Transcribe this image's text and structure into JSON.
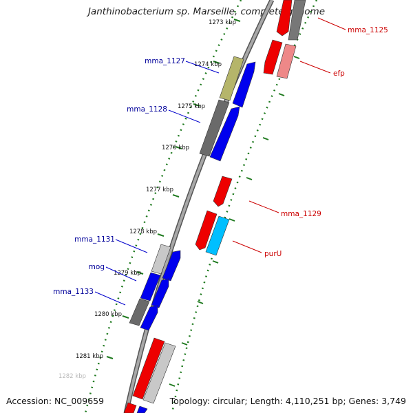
{
  "title": "Janthinobacterium sp. Marseille, complete genome",
  "accession": "Accession: NC_009659",
  "summary": "Topology: circular; Length: 4,110,251 bp; Genes: 3,749",
  "colors": {
    "backbone": "#888888",
    "tick_ring": "#1f7a1f",
    "forward_gene": "#0000ee",
    "reverse_gene": "#ee0000",
    "pseudo_gene": "#777777",
    "light_gene": "#c8c8c8",
    "olive_gene": "#b5b56a",
    "pink_gene": "#ee8888",
    "cyan_gene": "#00bfff",
    "left_label": "#00009a",
    "right_label": "#cc0000"
  },
  "scale": {
    "ticks": [
      {
        "label": "1273 kbp"
      },
      {
        "label": "1274 kbp"
      },
      {
        "label": "1275 kbp"
      },
      {
        "label": "1276 kbp"
      },
      {
        "label": "1277 kbp"
      },
      {
        "label": "1278 kbp"
      },
      {
        "label": "1279 kbp"
      },
      {
        "label": "1280 kbp"
      },
      {
        "label": "1281 kbp"
      },
      {
        "label": "1282 kbp"
      }
    ]
  },
  "gene_labels": {
    "left": [
      {
        "name": "mma_1127"
      },
      {
        "name": "mma_1128"
      },
      {
        "name": "mma_1131"
      },
      {
        "name": "mog"
      },
      {
        "name": "mma_1133"
      }
    ],
    "right": [
      {
        "name": "mma_1125"
      },
      {
        "name": "efp"
      },
      {
        "name": "mma_1129"
      },
      {
        "name": "purU"
      }
    ]
  }
}
